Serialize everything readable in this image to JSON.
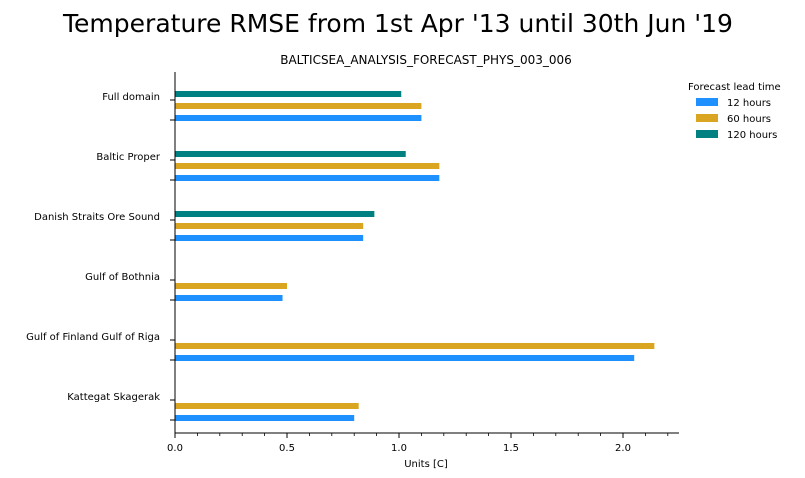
{
  "chart_data": {
    "type": "bar",
    "orientation": "horizontal",
    "title": "Temperature RMSE from 1st Apr '13 until 30th Jun '19",
    "subtitle": "BALTICSEA_ANALYSIS_FORECAST_PHYS_003_006",
    "xlabel": "Units [C]",
    "ylabel": "",
    "xlim": [
      0,
      2.25
    ],
    "xticks": [
      "0.0",
      "0.5",
      "1.0",
      "1.5",
      "2.0"
    ],
    "grid": false,
    "legend_placement": "top-right",
    "legend_title": "Forecast lead time",
    "categories": [
      "Full domain",
      "Baltic Proper",
      "Danish Straits Ore Sound",
      "Gulf of Bothnia",
      "Gulf of Finland Gulf of Riga",
      "Kattegat Skagerak"
    ],
    "series": [
      {
        "name": "12 hours",
        "color": "#1e90ff",
        "values": [
          1.1,
          1.18,
          0.84,
          0.48,
          2.05,
          0.8
        ]
      },
      {
        "name": "60 hours",
        "color": "#daa520",
        "values": [
          1.1,
          1.18,
          0.84,
          0.5,
          2.14,
          0.82
        ]
      },
      {
        "name": "120 hours",
        "color": "#008080",
        "values": [
          1.01,
          1.03,
          0.89,
          null,
          null,
          null
        ]
      }
    ]
  }
}
